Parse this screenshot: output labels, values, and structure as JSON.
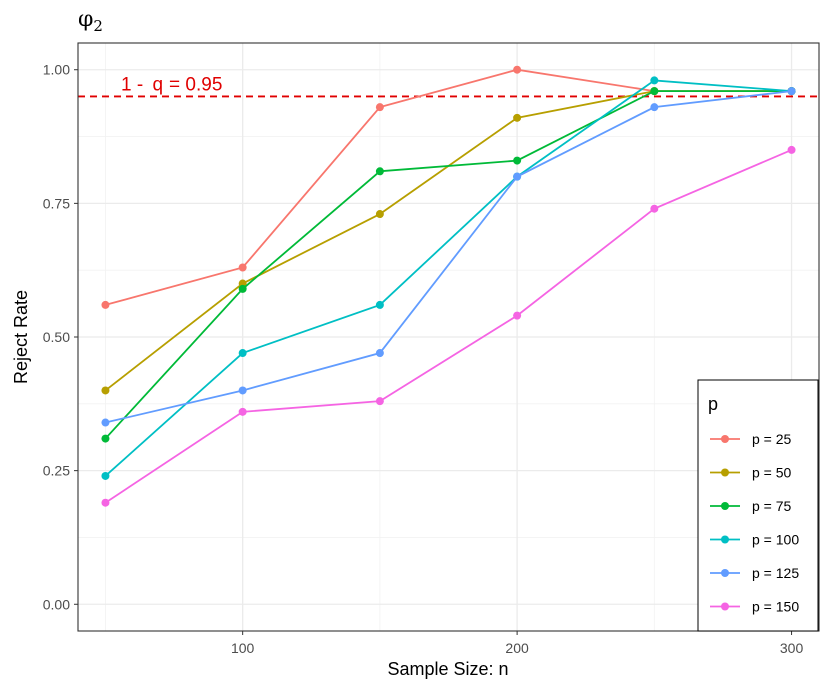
{
  "chart_data": {
    "type": "line",
    "title": "φ",
    "title_subscript": "2",
    "xlabel": "Sample Size: n",
    "ylabel": "Reject Rate",
    "x": [
      50,
      100,
      150,
      200,
      250,
      300
    ],
    "xlim": [
      40,
      310
    ],
    "ylim": [
      -0.05,
      1.05
    ],
    "xticks": [
      100,
      200,
      300
    ],
    "xtick_labels": [
      "100",
      "200",
      "300"
    ],
    "yticks": [
      0,
      0.25,
      0.5,
      0.75,
      1
    ],
    "ytick_labels": [
      "0.00",
      "0.25",
      "0.50",
      "0.75",
      "1.00"
    ],
    "grid": true,
    "reference_line": {
      "y": 0.95,
      "label_prefix": "1 -",
      "label_symbol": "q",
      "label_suffix": "= 0.95",
      "color": "#e00000",
      "style": "dashed"
    },
    "legend": {
      "title": "p",
      "placement": "right-bottom"
    },
    "series": [
      {
        "name": "p = 25",
        "color": "#f8766d",
        "values": [
          0.56,
          0.63,
          0.93,
          1.0,
          0.96,
          0.96
        ]
      },
      {
        "name": "p = 50",
        "color": "#b79f00",
        "values": [
          0.4,
          0.6,
          0.73,
          0.91,
          0.96,
          0.96
        ]
      },
      {
        "name": "p = 75",
        "color": "#00ba38",
        "values": [
          0.31,
          0.59,
          0.81,
          0.83,
          0.96,
          0.96
        ]
      },
      {
        "name": "p = 100",
        "color": "#00bfc4",
        "values": [
          0.24,
          0.47,
          0.56,
          0.8,
          0.98,
          0.96
        ]
      },
      {
        "name": "p = 125",
        "color": "#619cff",
        "values": [
          0.34,
          0.4,
          0.47,
          0.8,
          0.93,
          0.96
        ]
      },
      {
        "name": "p = 150",
        "color": "#f564e3",
        "values": [
          0.19,
          0.36,
          0.38,
          0.54,
          0.74,
          0.85
        ]
      }
    ]
  }
}
